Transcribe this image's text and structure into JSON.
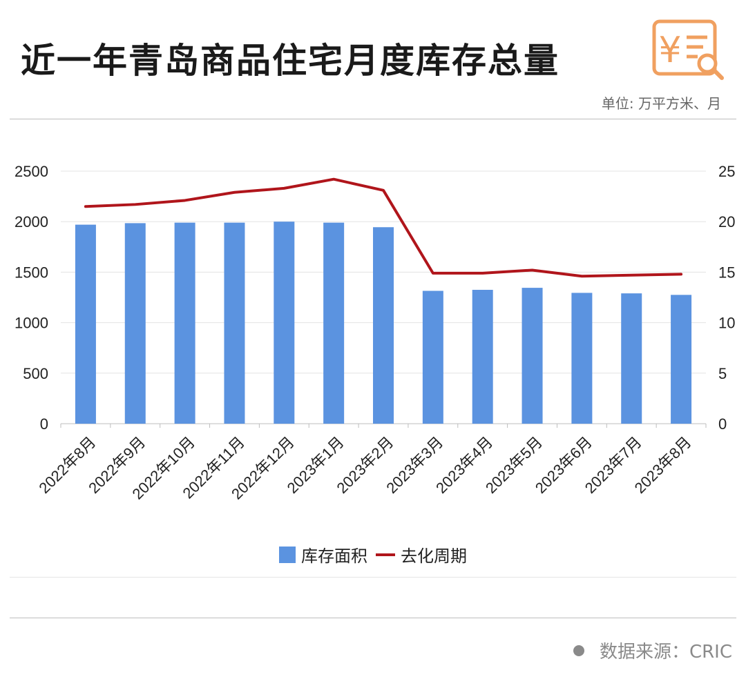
{
  "header": {
    "title": "近一年青岛商品住宅月度库存总量",
    "unit": "单位: 万平方米、月"
  },
  "footer": {
    "source": "数据来源：CRIC"
  },
  "colors": {
    "bar": "#5b93e0",
    "line": "#b0151b",
    "logo": "#f0a060"
  },
  "logo_icon": "yen-document-search-icon",
  "chart_data": {
    "type": "bar",
    "categories": [
      "2022年8月",
      "2022年9月",
      "2022年10月",
      "2022年11月",
      "2022年12月",
      "2023年1月",
      "2023年2月",
      "2023年3月",
      "2023年4月",
      "2023年5月",
      "2023年6月",
      "2023年7月",
      "2023年8月"
    ],
    "series": [
      {
        "name": "库存面积",
        "type": "bar",
        "axis": "left",
        "values": [
          1970,
          1985,
          1990,
          1990,
          2000,
          1990,
          1945,
          1315,
          1325,
          1345,
          1295,
          1290,
          1275
        ]
      },
      {
        "name": "去化周期",
        "type": "line",
        "axis": "right",
        "values": [
          21.5,
          21.7,
          22.1,
          22.9,
          23.3,
          24.2,
          23.1,
          14.9,
          14.9,
          15.2,
          14.6,
          14.7,
          14.8
        ]
      }
    ],
    "ylim_left": [
      0,
      2500
    ],
    "yticks_left": [
      "0",
      "500",
      "1000",
      "1500",
      "2000",
      "2500"
    ],
    "ylim_right": [
      0,
      25
    ],
    "yticks_right": [
      "0",
      "5",
      "10",
      "15",
      "20",
      "25"
    ],
    "grid": true,
    "legend_position": "bottom"
  }
}
